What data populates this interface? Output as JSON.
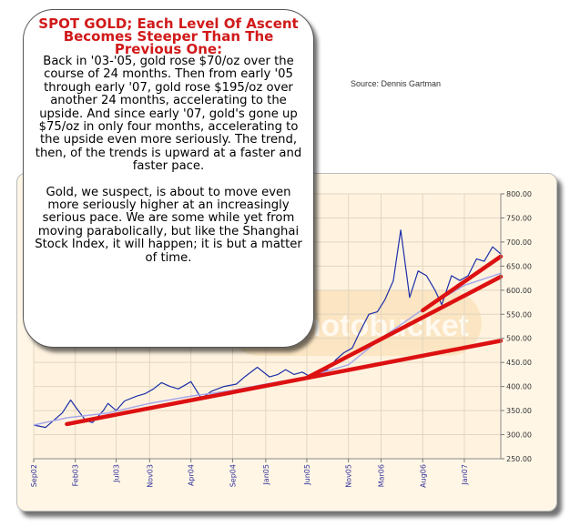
{
  "source_note": "Source: Dennis Gartman",
  "callout": {
    "title": "SPOT GOLD; Each Level Of Ascent Becomes Steeper Than The Previous One:",
    "paragraph_1": "Back in  '03-'05, gold rose $70/oz over the course of 24 months.  Then from early '05 through early '07, gold rose $195/oz over another 24 months, accelerating to the upside.  And since early '07, gold's gone up $75/oz in only four months, accelerating to the upside even more seriously.  The trend, then, of the trends is upward at a faster and faster pace.",
    "paragraph_2": "Gold, we suspect, is about to move even more seriously higher at an increasingly serious pace.  We are some while yet from moving parabolically, but like the Shanghai Stock Index, it will happen; it is but a matter of time."
  },
  "watermark_text": "photobucket",
  "colors": {
    "price_line": "#1c2ea8",
    "moving_average": "#a8a8e8",
    "trendlines": "#dd1111",
    "title": "#d11a1a",
    "chart_background": "#fff6e6",
    "gridlines": "#e2d6c0"
  },
  "chart_data": {
    "type": "line",
    "title": "",
    "xlabel": "",
    "ylabel": "",
    "ylim": [
      250,
      800
    ],
    "y_ticks": [
      "800.00",
      "750.00",
      "700.00",
      "650.00",
      "600.00",
      "550.00",
      "500.00",
      "450.00",
      "400.00",
      "350.00",
      "300.00",
      "250.00"
    ],
    "y_axis_side": "right",
    "x_range": [
      "2002-09-01",
      "2007-05-15"
    ],
    "x_ticks": [
      {
        "label": "Sep02",
        "date": "2002-09-01"
      },
      {
        "label": "Feb03",
        "date": "2003-02-01"
      },
      {
        "label": "Jul03",
        "date": "2003-07-01"
      },
      {
        "label": "Nov03",
        "date": "2003-11-01"
      },
      {
        "label": "Apr04",
        "date": "2004-04-01"
      },
      {
        "label": "Sep04",
        "date": "2004-09-01"
      },
      {
        "label": "Jan05",
        "date": "2005-01-01"
      },
      {
        "label": "Jun05",
        "date": "2005-06-01"
      },
      {
        "label": "Nov05",
        "date": "2005-11-01"
      },
      {
        "label": "Mar06",
        "date": "2006-03-01"
      },
      {
        "label": "Aug06",
        "date": "2006-08-01"
      },
      {
        "label": "Jan07",
        "date": "2007-01-01"
      }
    ],
    "grid": true,
    "series": [
      {
        "kind": "price",
        "x": [
          "2002-09-01",
          "2002-10-15",
          "2002-12-15",
          "2003-01-15",
          "2003-02-05",
          "2003-03-10",
          "2003-04-05",
          "2003-05-15",
          "2003-06-01",
          "2003-07-01",
          "2003-08-01",
          "2003-09-15",
          "2003-10-15",
          "2003-11-15",
          "2003-12-15",
          "2004-01-15",
          "2004-02-15",
          "2004-04-01",
          "2004-05-10",
          "2004-06-15",
          "2004-08-01",
          "2004-09-15",
          "2004-10-15",
          "2004-12-01",
          "2005-01-15",
          "2005-02-15",
          "2005-03-15",
          "2005-04-15",
          "2005-05-15",
          "2005-06-15",
          "2005-07-15",
          "2005-08-15",
          "2005-09-15",
          "2005-10-15",
          "2005-11-15",
          "2005-12-10",
          "2006-01-15",
          "2006-02-15",
          "2006-03-15",
          "2006-04-15",
          "2006-05-12",
          "2006-06-14",
          "2006-07-15",
          "2006-08-15",
          "2006-09-15",
          "2006-10-10",
          "2006-11-15",
          "2006-12-15",
          "2007-01-15",
          "2007-02-15",
          "2007-03-15",
          "2007-04-15",
          "2007-05-15"
        ],
        "values": [
          320,
          315,
          345,
          372,
          355,
          330,
          325,
          350,
          365,
          350,
          370,
          380,
          385,
          395,
          408,
          400,
          395,
          410,
          375,
          390,
          400,
          405,
          420,
          440,
          420,
          425,
          435,
          425,
          430,
          420,
          425,
          435,
          455,
          470,
          480,
          510,
          550,
          555,
          580,
          620,
          725,
          585,
          640,
          630,
          600,
          570,
          630,
          620,
          630,
          665,
          660,
          690,
          675
        ]
      },
      {
        "kind": "moving_average",
        "x": [
          "2002-09-01",
          "2003-01-01",
          "2003-06-01",
          "2003-11-01",
          "2004-04-01",
          "2004-09-01",
          "2005-01-01",
          "2005-06-01",
          "2005-11-01",
          "2006-03-01",
          "2006-08-01",
          "2007-01-01",
          "2007-05-15"
        ],
        "values": [
          320,
          335,
          345,
          365,
          380,
          392,
          405,
          420,
          445,
          500,
          560,
          610,
          635
        ]
      }
    ],
    "trendlines": [
      {
        "x": [
          "2003-01-01",
          "2007-05-15"
        ],
        "values": [
          322,
          495
        ]
      },
      {
        "x": [
          "2005-06-01",
          "2007-05-15"
        ],
        "values": [
          418,
          628
        ]
      },
      {
        "x": [
          "2006-08-01",
          "2007-05-15"
        ],
        "values": [
          558,
          670
        ]
      }
    ]
  }
}
